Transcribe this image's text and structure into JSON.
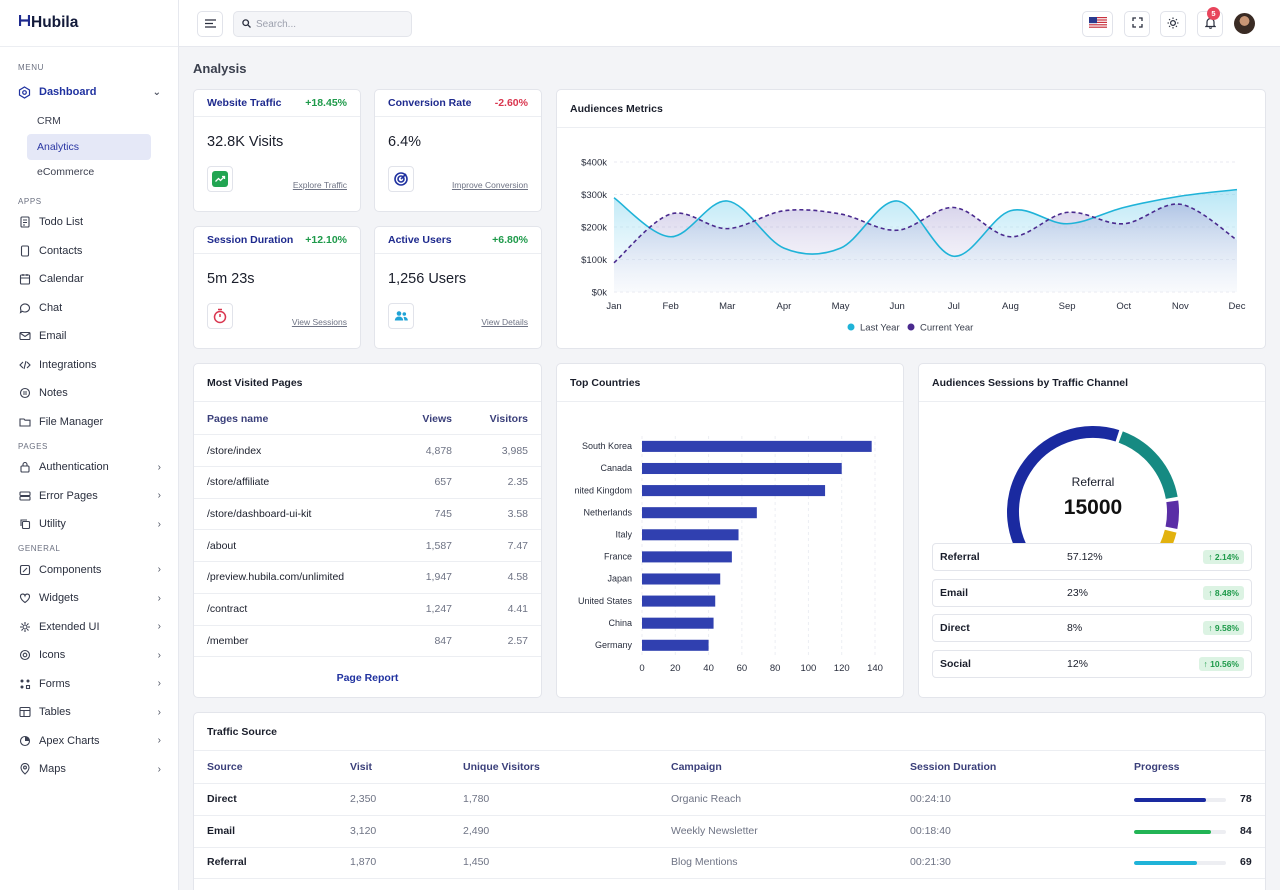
{
  "app": {
    "name": "Hubila",
    "logo_mark": "H"
  },
  "sidebar": {
    "sections": {
      "menu": "MENU",
      "apps": "APPS",
      "pages": "PAGES",
      "general": "GENERAL"
    },
    "dashboard": {
      "label": "Dashboard",
      "icon": "dashboard-icon"
    },
    "dashboard_sub": [
      "CRM",
      "Analytics",
      "eCommerce"
    ],
    "apps": [
      {
        "label": "Todo List",
        "icon": "todo-icon"
      },
      {
        "label": "Contacts",
        "icon": "contacts-icon"
      },
      {
        "label": "Calendar",
        "icon": "calendar-icon"
      },
      {
        "label": "Chat",
        "icon": "chat-icon"
      },
      {
        "label": "Email",
        "icon": "email-icon"
      },
      {
        "label": "Integrations",
        "icon": "code-icon"
      },
      {
        "label": "Notes",
        "icon": "notes-icon"
      },
      {
        "label": "File Manager",
        "icon": "folder-icon"
      }
    ],
    "pages": [
      {
        "label": "Authentication",
        "icon": "lock-icon"
      },
      {
        "label": "Error Pages",
        "icon": "server-icon"
      },
      {
        "label": "Utility",
        "icon": "copy-icon"
      }
    ],
    "general": [
      {
        "label": "Components",
        "icon": "components-icon"
      },
      {
        "label": "Widgets",
        "icon": "widgets-icon"
      },
      {
        "label": "Extended UI",
        "icon": "extended-icon"
      },
      {
        "label": "Icons",
        "icon": "icons-icon"
      },
      {
        "label": "Forms",
        "icon": "forms-icon"
      },
      {
        "label": "Tables",
        "icon": "tables-icon"
      },
      {
        "label": "Apex Charts",
        "icon": "chart-icon"
      },
      {
        "label": "Maps",
        "icon": "map-pin-icon"
      }
    ]
  },
  "topbar": {
    "search_placeholder": "Search...",
    "notifications_count": "5"
  },
  "page": {
    "title": "Analysis"
  },
  "kpis": [
    {
      "title": "Website Traffic",
      "change": "+18.45%",
      "value": "32.8K Visits",
      "link": "Explore Traffic",
      "icon": "trend-up-icon",
      "color": "#1e9a4a"
    },
    {
      "title": "Conversion Rate",
      "change": "-2.60%",
      "value": "6.4%",
      "link": "Improve Conversion",
      "icon": "target-icon",
      "color": "#2032a0"
    },
    {
      "title": "Session Duration",
      "change": "+12.10%",
      "value": "5m 23s",
      "link": "View Sessions",
      "icon": "timer-icon",
      "color": "#d9364f"
    },
    {
      "title": "Active Users",
      "change": "+6.80%",
      "value": "1,256 Users",
      "link": "View Details",
      "icon": "users-icon",
      "color": "#1fa3d6"
    }
  ],
  "audience_metrics": {
    "title": "Audiences Metrics"
  },
  "most_visited": {
    "title": "Most Visited Pages",
    "columns": [
      "Pages name",
      "Views",
      "Visitors"
    ],
    "rows": [
      [
        "/store/index",
        "4,878",
        "3,985"
      ],
      [
        "/store/affiliate",
        "657",
        "2.35"
      ],
      [
        "/store/dashboard-ui-kit",
        "745",
        "3.58"
      ],
      [
        "/about",
        "1,587",
        "7.47"
      ],
      [
        "/preview.hubila.com/unlimited",
        "1,947",
        "4.58"
      ],
      [
        "/contract",
        "1,247",
        "4.41"
      ],
      [
        "/member",
        "847",
        "2.57"
      ]
    ],
    "footer_link": "Page Report"
  },
  "top_countries": {
    "title": "Top Countries"
  },
  "traffic_channel": {
    "title": "Audiences Sessions by Traffic Channel",
    "gauge_label": "Referral",
    "gauge_value": "15000",
    "rows": [
      {
        "name": "Referral",
        "pct": "57.12%",
        "delta": "2.14%"
      },
      {
        "name": "Email",
        "pct": "23%",
        "delta": "8.48%"
      },
      {
        "name": "Direct",
        "pct": "8%",
        "delta": "9.58%"
      },
      {
        "name": "Social",
        "pct": "12%",
        "delta": "10.56%"
      }
    ],
    "segments": [
      {
        "color": "#1a2aa0",
        "share": 0.5712
      },
      {
        "color": "#168a82",
        "share": 0.23
      },
      {
        "color": "#5a2ea6",
        "share": 0.08
      },
      {
        "color": "#e2b20f",
        "share": 0.12
      }
    ]
  },
  "traffic_source": {
    "title": "Traffic Source",
    "columns": [
      "Source",
      "Visit",
      "Unique Visitors",
      "Campaign",
      "Session Duration",
      "Progress"
    ],
    "rows": [
      {
        "source": "Direct",
        "visit": "2,350",
        "unique": "1,780",
        "campaign": "Organic Reach",
        "duration": "00:24:10",
        "progress": 78,
        "color": "#1a2aa0"
      },
      {
        "source": "Email",
        "visit": "3,120",
        "unique": "2,490",
        "campaign": "Weekly Newsletter",
        "duration": "00:18:40",
        "progress": 84,
        "color": "#22b455"
      },
      {
        "source": "Referral",
        "visit": "1,870",
        "unique": "1,450",
        "campaign": "Blog Mentions",
        "duration": "00:21:30",
        "progress": 69,
        "color": "#1fb3d8"
      }
    ]
  },
  "chart_data": [
    {
      "type": "area",
      "categories": [
        "Jan",
        "Feb",
        "Mar",
        "Apr",
        "May",
        "Jun",
        "Jul",
        "Aug",
        "Sep",
        "Oct",
        "Nov",
        "Dec"
      ],
      "series": [
        {
          "name": "Last Year",
          "values": [
            290,
            170,
            280,
            135,
            135,
            280,
            110,
            250,
            210,
            260,
            295,
            315
          ],
          "color": "#1fb3d8"
        },
        {
          "name": "Current Year",
          "values": [
            90,
            240,
            195,
            250,
            240,
            190,
            260,
            170,
            245,
            210,
            270,
            160
          ],
          "color": "#4a2a8e"
        }
      ],
      "yticks": [
        "$0k",
        "$100k",
        "$200k",
        "$300k",
        "$400k"
      ],
      "ylim": [
        0,
        400
      ],
      "legend": "bottom-center",
      "grid": true
    },
    {
      "type": "bar",
      "orientation": "horizontal",
      "categories": [
        "South Korea",
        "Canada",
        "nited Kingdom",
        "Netherlands",
        "Italy",
        "France",
        "Japan",
        "United States",
        "China",
        "Germany"
      ],
      "values": [
        138,
        120,
        110,
        69,
        58,
        54,
        47,
        44,
        43,
        40
      ],
      "xticks": [
        0,
        20,
        40,
        60,
        80,
        100,
        120,
        140
      ],
      "xlim": [
        0,
        140
      ],
      "color": "#3040b0",
      "grid": true
    }
  ]
}
